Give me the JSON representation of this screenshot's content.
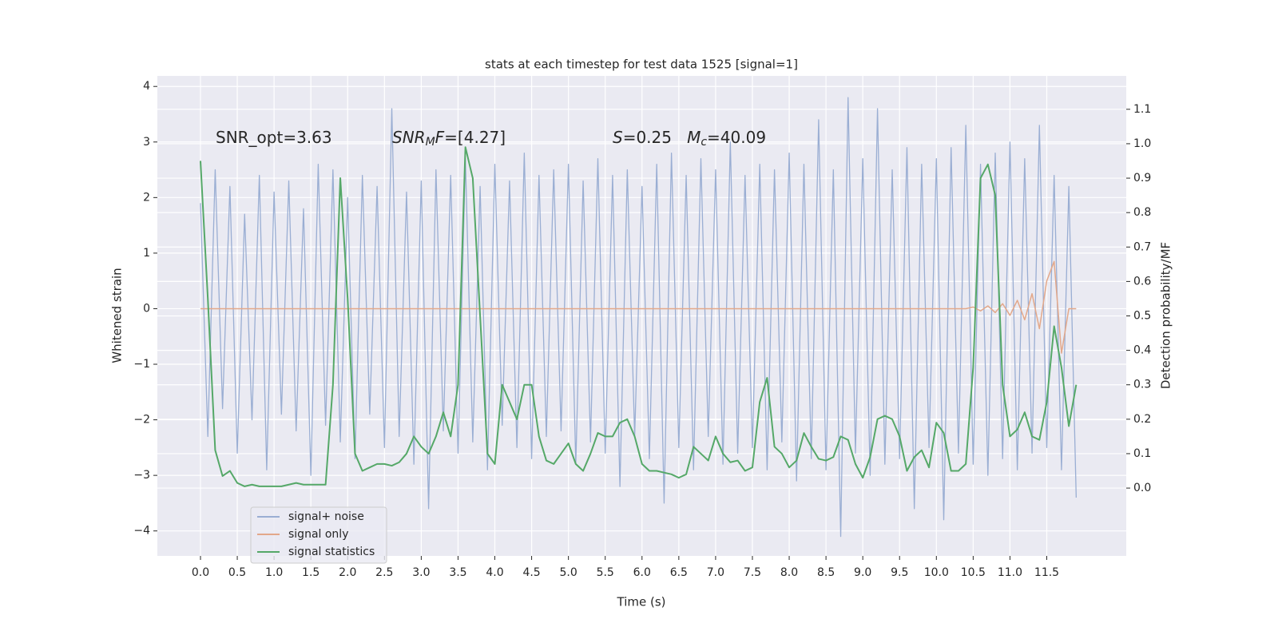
{
  "chart_data": {
    "type": "line",
    "title": "stats at each timestep for test data 1525 [signal=1]",
    "xlabel": "Time (s)",
    "ylabel": "Whitened strain",
    "y2label": "Detection probability/MF",
    "xlim": [
      -0.586,
      12.58
    ],
    "ylim": [
      -4.45,
      4.19
    ],
    "y2lim": [
      -0.197,
      1.197
    ],
    "xticks": [
      {
        "value": 0,
        "label": "0.0"
      },
      0.5,
      {
        "value": 1,
        "label": "1.0"
      },
      1.5,
      {
        "value": 2,
        "label": "2.0"
      },
      2.5,
      {
        "value": 3,
        "label": "3.0"
      },
      3.5,
      {
        "value": 4,
        "label": "4.0"
      },
      4.5,
      {
        "value": 5,
        "label": "5.0"
      },
      5.5,
      {
        "value": 6,
        "label": "6.0"
      },
      6.5,
      {
        "value": 7,
        "label": "7.0"
      },
      7.5,
      {
        "value": 8,
        "label": "8.0"
      },
      8.5,
      {
        "value": 9,
        "label": "9.0"
      },
      9.5,
      {
        "value": 10,
        "label": "10.0"
      },
      10.5,
      {
        "value": 11,
        "label": "11.0"
      },
      11.5
    ],
    "yticks": [
      {
        "value": -4,
        "label": "−4"
      },
      {
        "value": -3,
        "label": "−3"
      },
      {
        "value": -2,
        "label": "−2"
      },
      {
        "value": -1,
        "label": "−1"
      },
      0,
      1,
      2,
      3,
      4
    ],
    "y2ticks": [
      {
        "value": 0,
        "label": "0.0"
      },
      0.1,
      0.2,
      0.3,
      0.4,
      0.5,
      0.6,
      0.7,
      0.8,
      0.9,
      {
        "value": 1,
        "label": "1.0"
      },
      1.1
    ],
    "grid": true,
    "legend": "lower left",
    "annotations": [
      [
        {
          "text": "SNR_opt=3.63"
        }
      ],
      [
        {
          "text": "SNR",
          "italic": true
        },
        {
          "text": "M",
          "italic": true,
          "sub": true
        },
        {
          "text": "F",
          "italic": true
        },
        {
          "text": "=[4.27]"
        }
      ],
      [
        {
          "text": "S",
          "italic": true
        },
        {
          "text": "=0.25   "
        },
        {
          "text": "M",
          "italic": true
        },
        {
          "text": "c",
          "italic": true,
          "sub": true
        },
        {
          "text": "=40.09"
        }
      ]
    ],
    "x": [
      0,
      0.1,
      0.2,
      0.3,
      0.4,
      0.5,
      0.6,
      0.7,
      0.8,
      0.9,
      1,
      1.1,
      1.2,
      1.3,
      1.4,
      1.5,
      1.6,
      1.7,
      1.8,
      1.9,
      2,
      2.1,
      2.2,
      2.3,
      2.4,
      2.5,
      2.6,
      2.7,
      2.8,
      2.9,
      3,
      3.1,
      3.2,
      3.3,
      3.4,
      3.5,
      3.6,
      3.7,
      3.8,
      3.9,
      4,
      4.1,
      4.2,
      4.3,
      4.4,
      4.5,
      4.6,
      4.7,
      4.8,
      4.9,
      5,
      5.1,
      5.2,
      5.3,
      5.4,
      5.5,
      5.6,
      5.7,
      5.8,
      5.9,
      6,
      6.1,
      6.2,
      6.3,
      6.4,
      6.5,
      6.6,
      6.7,
      6.8,
      6.9,
      7,
      7.1,
      7.2,
      7.3,
      7.4,
      7.5,
      7.6,
      7.7,
      7.8,
      7.9,
      8,
      8.1,
      8.2,
      8.3,
      8.4,
      8.5,
      8.6,
      8.7,
      8.8,
      8.9,
      9,
      9.1,
      9.2,
      9.3,
      9.4,
      9.5,
      9.6,
      9.7,
      9.8,
      9.9,
      10,
      10.1,
      10.2,
      10.3,
      10.4,
      10.5,
      10.6,
      10.7,
      10.8,
      10.9,
      11,
      11.1,
      11.2,
      11.3,
      11.4,
      11.5,
      11.6,
      11.7,
      11.8,
      11.9
    ],
    "series": [
      {
        "name": "signal+ noise",
        "color": "#9aaed3",
        "axis": "y",
        "values": [
          1.9,
          -2.3,
          2.5,
          -1.8,
          2.2,
          -2.6,
          1.7,
          -2.0,
          2.4,
          -2.9,
          2.1,
          -1.9,
          2.3,
          -2.2,
          1.8,
          -3.0,
          2.6,
          -2.1,
          2.5,
          -2.4,
          2.0,
          -2.7,
          2.4,
          -1.9,
          2.2,
          -2.5,
          3.6,
          -2.3,
          2.1,
          -2.8,
          2.3,
          -3.6,
          2.5,
          -2.2,
          2.4,
          -2.6,
          2.7,
          -2.4,
          2.2,
          -2.9,
          2.6,
          -2.1,
          2.3,
          -2.5,
          2.8,
          -2.7,
          2.4,
          -2.3,
          2.5,
          -2.2,
          2.6,
          -2.8,
          2.3,
          -2.4,
          2.7,
          -2.6,
          2.4,
          -3.2,
          2.5,
          -2.3,
          2.2,
          -2.7,
          2.6,
          -3.5,
          2.8,
          -2.5,
          2.4,
          -2.9,
          2.7,
          -2.3,
          2.5,
          -2.8,
          3.0,
          -2.6,
          2.4,
          -2.5,
          2.6,
          -2.9,
          2.5,
          -2.4,
          2.8,
          -3.1,
          2.6,
          -2.7,
          3.4,
          -2.9,
          2.5,
          -4.1,
          3.8,
          -2.6,
          2.7,
          -3.0,
          3.6,
          -2.8,
          2.5,
          -2.7,
          2.9,
          -3.6,
          2.6,
          -2.5,
          2.7,
          -3.8,
          2.9,
          -2.6,
          3.3,
          -2.8,
          2.6,
          -3.0,
          2.8,
          -2.7,
          3.0,
          -2.9,
          2.7,
          -2.6,
          3.3,
          -2.5,
          2.4,
          -2.9,
          2.2,
          -3.4
        ]
      },
      {
        "name": "signal only",
        "color": "#e3a88a",
        "axis": "y",
        "values": [
          0,
          0,
          0,
          0,
          0,
          0,
          0,
          0,
          0,
          0,
          0,
          0,
          0,
          0,
          0,
          0,
          0,
          0,
          0,
          0,
          0,
          0,
          0,
          0,
          0,
          0,
          0,
          0,
          0,
          0,
          0,
          0,
          0,
          0,
          0,
          0,
          0,
          0,
          0,
          0,
          0,
          0,
          0,
          0,
          0,
          0,
          0,
          0,
          0,
          0,
          0,
          0,
          0,
          0,
          0,
          0,
          0,
          0,
          0,
          0,
          0,
          0,
          0,
          0,
          0,
          0,
          0,
          0,
          0,
          0,
          0,
          0,
          0,
          0,
          0,
          0,
          0,
          0,
          0,
          0,
          0,
          0,
          0,
          0,
          0,
          0,
          0,
          0,
          0,
          0,
          0,
          0,
          0,
          0,
          0,
          0,
          0,
          0,
          0,
          0,
          0,
          0,
          0,
          0,
          0,
          0.03,
          -0.04,
          0.05,
          -0.07,
          0.09,
          -0.12,
          0.15,
          -0.2,
          0.27,
          -0.36,
          0.5,
          0.85,
          -0.8,
          0,
          0
        ]
      },
      {
        "name": "signal statistics",
        "color": "#55a868",
        "axis": "y2",
        "values": [
          0.95,
          0.55,
          0.11,
          0.035,
          0.05,
          0.015,
          0.005,
          0.01,
          0.005,
          0.005,
          0.005,
          0.005,
          0.01,
          0.015,
          0.01,
          0.01,
          0.01,
          0.01,
          0.3,
          0.9,
          0.55,
          0.1,
          0.05,
          0.06,
          0.07,
          0.07,
          0.065,
          0.075,
          0.1,
          0.15,
          0.12,
          0.1,
          0.15,
          0.22,
          0.15,
          0.3,
          0.99,
          0.9,
          0.5,
          0.1,
          0.07,
          0.3,
          0.25,
          0.2,
          0.3,
          0.3,
          0.15,
          0.08,
          0.07,
          0.1,
          0.13,
          0.07,
          0.05,
          0.1,
          0.16,
          0.15,
          0.15,
          0.19,
          0.2,
          0.15,
          0.07,
          0.05,
          0.05,
          0.045,
          0.04,
          0.03,
          0.04,
          0.12,
          0.1,
          0.08,
          0.15,
          0.1,
          0.075,
          0.08,
          0.05,
          0.06,
          0.25,
          0.32,
          0.12,
          0.1,
          0.06,
          0.08,
          0.16,
          0.12,
          0.085,
          0.08,
          0.09,
          0.15,
          0.14,
          0.07,
          0.03,
          0.09,
          0.2,
          0.21,
          0.2,
          0.15,
          0.05,
          0.09,
          0.11,
          0.06,
          0.19,
          0.16,
          0.05,
          0.05,
          0.07,
          0.35,
          0.9,
          0.94,
          0.85,
          0.3,
          0.15,
          0.17,
          0.22,
          0.15,
          0.14,
          0.25,
          0.47,
          0.35,
          0.18,
          0.3
        ]
      }
    ]
  }
}
